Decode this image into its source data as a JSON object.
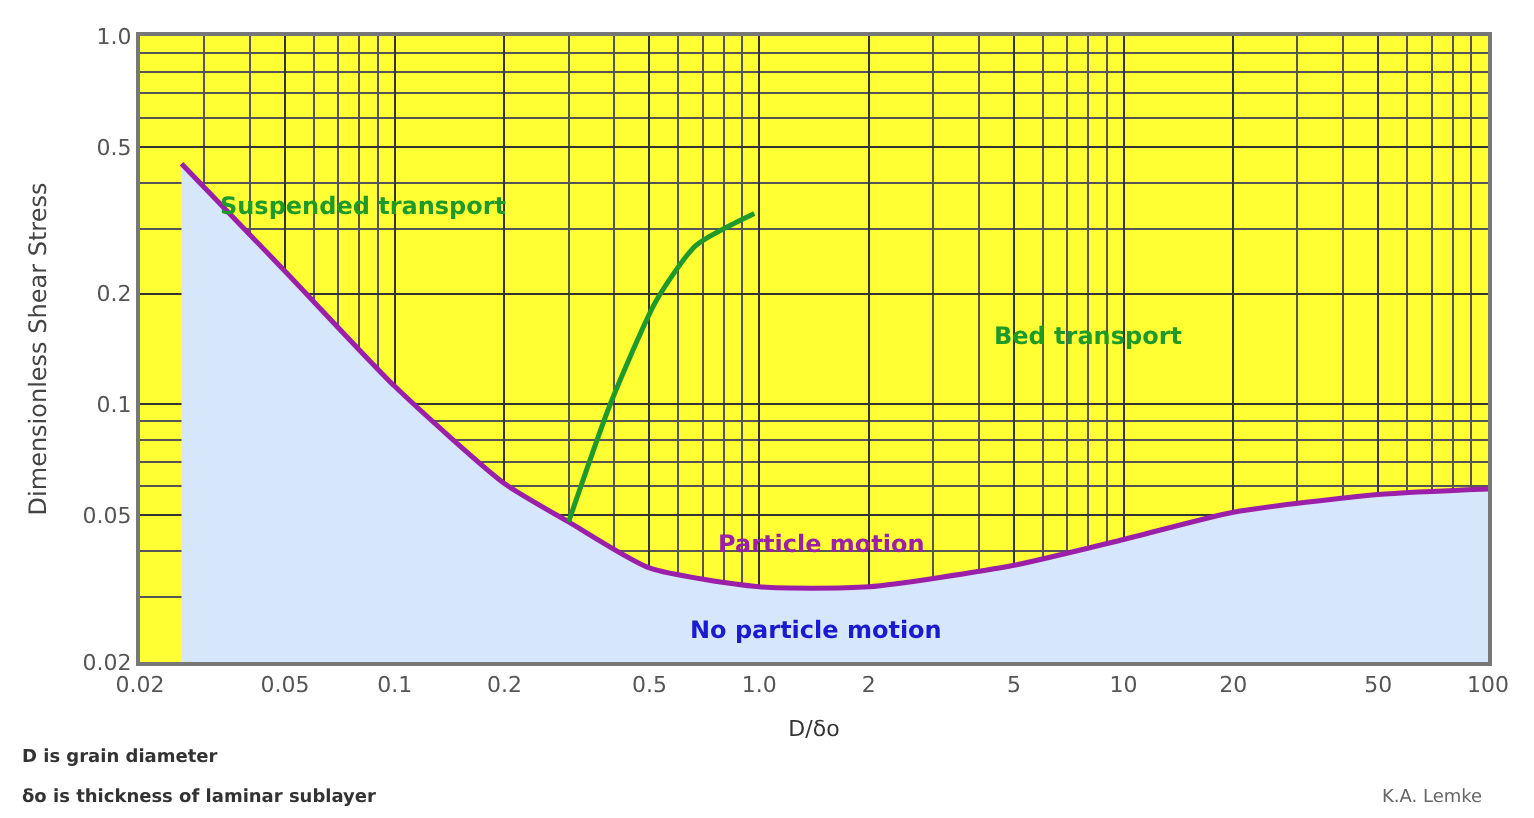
{
  "chart_data": {
    "type": "line",
    "xlabel": "D/δo",
    "ylabel": "Dimensionless Shear Stress",
    "log": "xy",
    "grid": true,
    "marker": "none",
    "line_style": "solid",
    "xlim": [
      0.02,
      100
    ],
    "ylim": [
      0.02,
      1.0
    ],
    "xticks": [
      0.02,
      0.05,
      0.1,
      0.2,
      0.5,
      {
        "value": 1,
        "label": "1.0"
      },
      2,
      5,
      10,
      20,
      50,
      100
    ],
    "yticks": [
      0.02,
      0.05,
      0.1,
      0.2,
      0.5,
      {
        "value": 1,
        "label": "1.0"
      }
    ],
    "series": [
      {
        "type": "area",
        "color": "#9b1fa8",
        "x": [
          0.026,
          0.05,
          0.1,
          0.2,
          0.3,
          0.5,
          1.0,
          2,
          5,
          10,
          20,
          50,
          100
        ],
        "values": [
          0.45,
          0.23,
          0.112,
          0.061,
          0.048,
          0.036,
          0.032,
          0.032,
          0.0366,
          0.043,
          0.051,
          0.057,
          0.059
        ]
      },
      {
        "color": "#1f9a2a",
        "x": [
          0.3,
          0.39,
          0.52,
          0.67,
          0.97
        ],
        "values": [
          0.048,
          0.1,
          0.19,
          0.27,
          0.33
        ]
      }
    ],
    "annotations": [
      "Suspended transport",
      "Bed transport",
      "Particle motion",
      "No particle motion",
      "D is grain diameter",
      "δo is thickness of laminar sublayer",
      "K.A. Lemke"
    ]
  }
}
